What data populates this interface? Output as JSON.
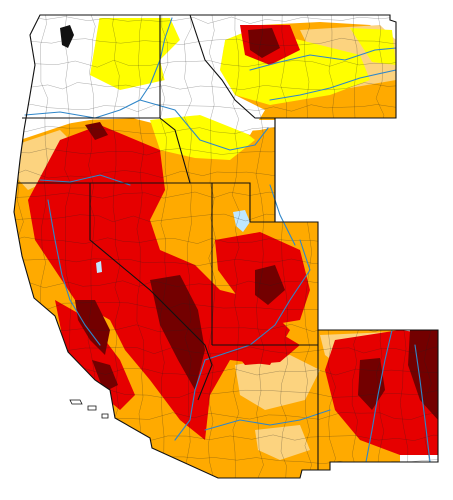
{
  "map": {
    "region": "western-united-states",
    "states": [
      "WA",
      "OR",
      "CA",
      "ID",
      "NV",
      "UT",
      "AZ",
      "MT",
      "WY",
      "CO",
      "NM"
    ],
    "legend_shown": false,
    "category_colors": {
      "none": "#ffffff",
      "D0": "#ffff00",
      "D1": "#fcd37f",
      "D2": "#ffaa00",
      "D3": "#e60000",
      "D4": "#730000",
      "water": "#bfe7ff",
      "rivers": "#2f86c9",
      "county_lines": "#222222"
    }
  }
}
